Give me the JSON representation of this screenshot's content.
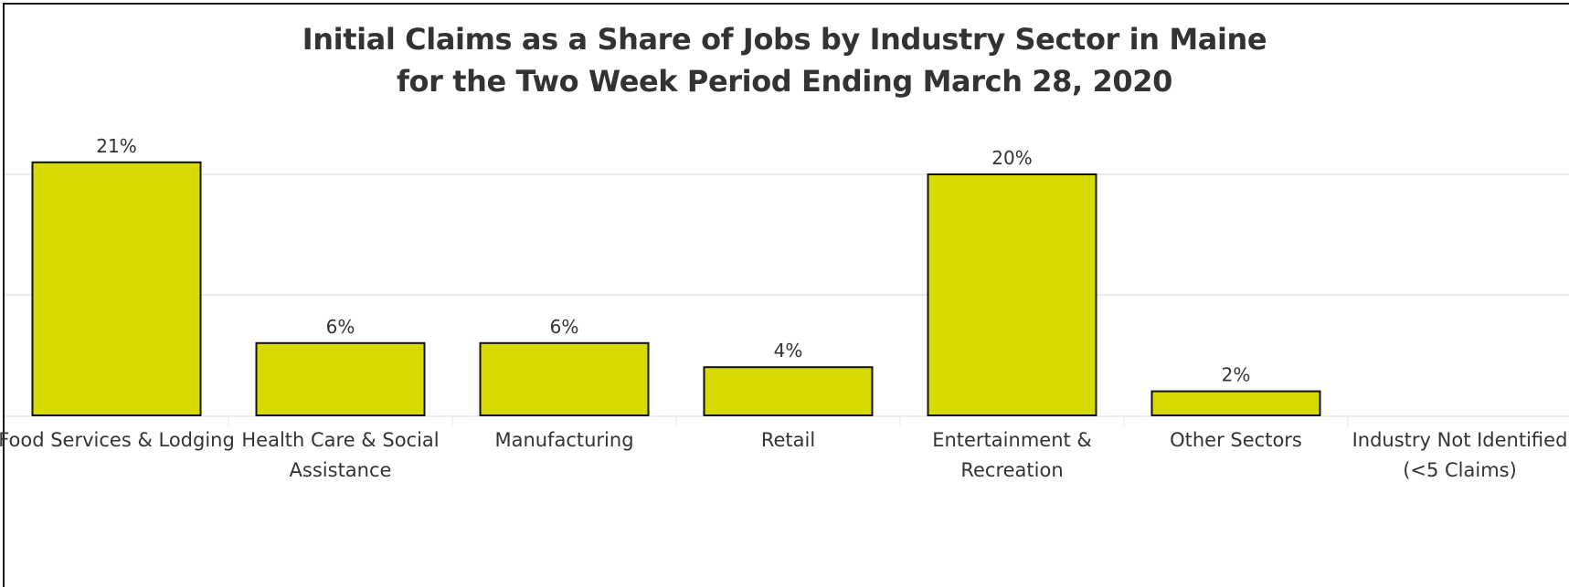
{
  "chart_data": {
    "type": "bar",
    "title": "Initial Claims as a Share of Jobs by Industry Sector in Maine",
    "subtitle": "for the Two Week Period Ending March 28, 2020",
    "categories": [
      [
        "Food Services & Lodging"
      ],
      [
        "Health Care & Social",
        "Assistance"
      ],
      [
        "Manufacturing"
      ],
      [
        "Retail"
      ],
      [
        "Entertainment &",
        "Recreation"
      ],
      [
        "Other Sectors"
      ],
      [
        "Industry Not Identified",
        "(<5 Claims)"
      ]
    ],
    "values": [
      21,
      6,
      6,
      4,
      20,
      2,
      0
    ],
    "value_labels": [
      "21%",
      "6%",
      "6%",
      "4%",
      "20%",
      "2%",
      ""
    ],
    "unit": "%",
    "ylim": [
      0,
      20
    ],
    "gridlines": [
      10,
      20
    ],
    "grid": true,
    "xlabel": "",
    "ylabel": "",
    "colors": {
      "bar_fill": "#D7DA00",
      "bar_stroke": "#111111",
      "grid": "#e4e4e4",
      "text": "#333333"
    }
  }
}
